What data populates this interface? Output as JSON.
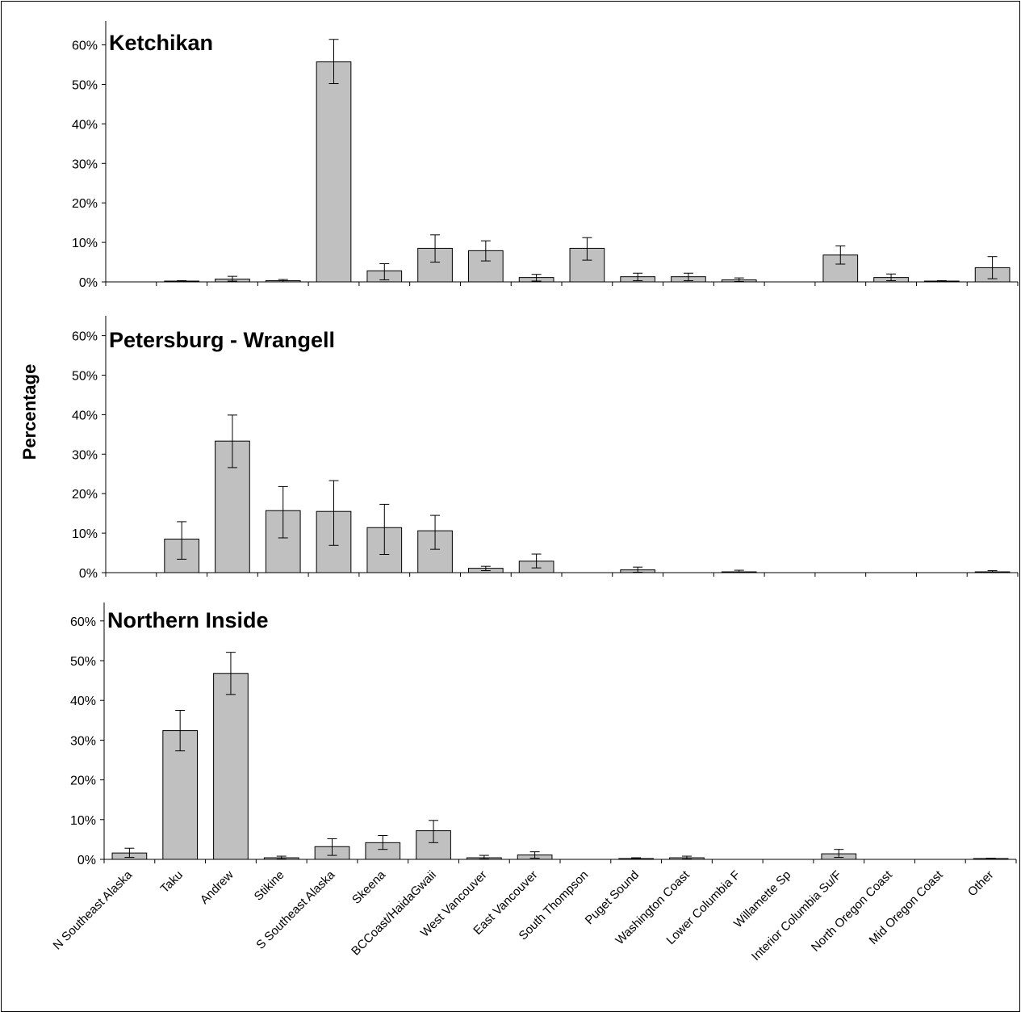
{
  "chart_data": {
    "type": "bar",
    "ylabel": "Percentage",
    "ylim": [
      0,
      65
    ],
    "yticks": [
      "0%",
      "10%",
      "20%",
      "30%",
      "40%",
      "50%",
      "60%"
    ],
    "categories": [
      "N Southeast Alaska",
      "Taku",
      "Andrew",
      "Stikine",
      "S Southeast Alaska",
      "Skeena",
      "BCCoast/HaidaGwaii",
      "West Vancouver",
      "East Vancouver",
      "South Thompson",
      "Puget Sound",
      "Washington Coast",
      "Lower Columbia F",
      "Willamette Sp",
      "Interior Columbia Su/F",
      "North Oregon Coast",
      "Mid Oregon Coast",
      "Other"
    ],
    "panels": [
      {
        "title": "Ketchikan",
        "values": [
          0,
          0.2,
          0.7,
          0.3,
          55.7,
          2.8,
          8.5,
          7.9,
          1.1,
          8.5,
          1.3,
          1.3,
          0.5,
          0,
          6.8,
          1.1,
          0.2,
          3.6
        ],
        "err_low": [
          0,
          0,
          0.2,
          0,
          50.2,
          0.5,
          5.0,
          5.3,
          0.2,
          5.5,
          0.3,
          0.3,
          0.1,
          0,
          4.5,
          0.3,
          0,
          0.8
        ],
        "err_high": [
          0,
          0.3,
          1.4,
          0.6,
          61.4,
          4.6,
          11.9,
          10.4,
          1.9,
          11.2,
          2.2,
          2.2,
          1.0,
          0,
          9.1,
          2.0,
          0.3,
          6.4
        ]
      },
      {
        "title": "Petersburg - Wrangell",
        "values": [
          0,
          8.5,
          33.3,
          15.7,
          15.5,
          11.4,
          10.6,
          1.1,
          2.9,
          0,
          0.7,
          0,
          0.2,
          0,
          0,
          0,
          0,
          0.2
        ],
        "err_low": [
          0,
          3.4,
          26.6,
          8.8,
          6.9,
          4.6,
          5.9,
          0.5,
          1.2,
          0,
          0.1,
          0,
          0,
          0,
          0,
          0,
          0,
          0
        ],
        "err_high": [
          0,
          12.9,
          39.9,
          21.8,
          23.3,
          17.3,
          14.5,
          1.6,
          4.7,
          0,
          1.4,
          0,
          0.6,
          0,
          0,
          0,
          0,
          0.5
        ]
      },
      {
        "title": "Northern Inside",
        "values": [
          1.6,
          32.4,
          46.8,
          0.4,
          3.2,
          4.2,
          7.2,
          0.4,
          1.1,
          0,
          0.2,
          0.4,
          0,
          0,
          1.4,
          0,
          0,
          0.2
        ],
        "err_low": [
          0.5,
          27.3,
          41.5,
          0.1,
          1.0,
          2.5,
          4.2,
          0.1,
          0.3,
          0,
          0,
          0.1,
          0,
          0,
          0.5,
          0,
          0,
          0
        ],
        "err_high": [
          2.8,
          37.5,
          52.1,
          0.8,
          5.2,
          6.0,
          9.8,
          1.0,
          1.9,
          0,
          0.4,
          0.8,
          0,
          0,
          2.5,
          0,
          0,
          0.3
        ]
      }
    ]
  }
}
